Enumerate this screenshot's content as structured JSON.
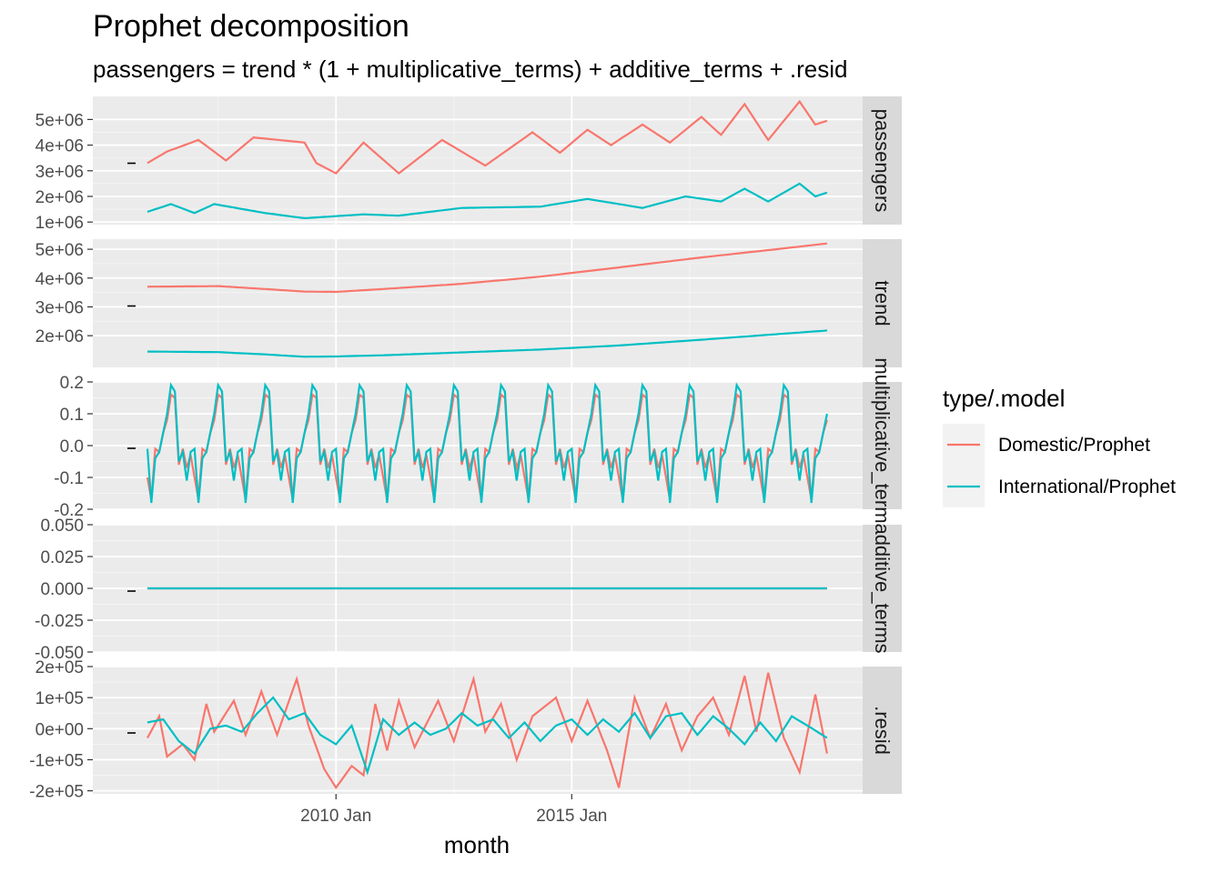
{
  "chart_data": {
    "type": "line",
    "title": "Prophet decomposition",
    "subtitle": "passengers = trend * (1 + multiplicative_terms) + additive_terms + .resid",
    "xlabel": "month",
    "x_ticks": [
      "2010 Jan",
      "2015 Jan"
    ],
    "legend": {
      "title": "type/.model",
      "placement": "right",
      "entries": [
        "Domestic/Prophet",
        "International/Prophet"
      ]
    },
    "colors": {
      "Domestic/Prophet": "#F8766D",
      "International/Prophet": "#00BFC4"
    },
    "grid": true,
    "x_range": [
      "2006 Jan",
      "2017 Dec"
    ],
    "panels": [
      {
        "strip": "passengers",
        "ylim": [
          900000,
          5900000
        ],
        "y_ticks": [
          "1e+06",
          "2e+06",
          "3e+06",
          "4e+06",
          "5e+06"
        ],
        "y_tick_values": [
          1000000,
          2000000,
          3000000,
          4000000,
          5000000
        ],
        "series": [
          {
            "name": "Domestic/Prophet",
            "anchors": [
              [
                0,
                3300000
              ],
              [
                5,
                3750000
              ],
              [
                13,
                4200000
              ],
              [
                20,
                3400000
              ],
              [
                27,
                4300000
              ],
              [
                40,
                4100000
              ],
              [
                43,
                3300000
              ],
              [
                48,
                2900000
              ],
              [
                55,
                4100000
              ],
              [
                64,
                2900000
              ],
              [
                75,
                4200000
              ],
              [
                86,
                3200000
              ],
              [
                98,
                4500000
              ],
              [
                105,
                3700000
              ],
              [
                112,
                4600000
              ],
              [
                118,
                4000000
              ],
              [
                126,
                4800000
              ],
              [
                133,
                4100000
              ],
              [
                141,
                5100000
              ],
              [
                146,
                4400000
              ],
              [
                152,
                5600000
              ],
              [
                158,
                4200000
              ],
              [
                166,
                5700000
              ],
              [
                170,
                4800000
              ],
              [
                173,
                4950000
              ]
            ]
          },
          {
            "name": "International/Prophet",
            "anchors": [
              [
                0,
                1400000
              ],
              [
                6,
                1700000
              ],
              [
                12,
                1350000
              ],
              [
                17,
                1700000
              ],
              [
                30,
                1350000
              ],
              [
                40,
                1150000
              ],
              [
                55,
                1300000
              ],
              [
                64,
                1250000
              ],
              [
                80,
                1550000
              ],
              [
                100,
                1600000
              ],
              [
                112,
                1900000
              ],
              [
                126,
                1550000
              ],
              [
                137,
                2000000
              ],
              [
                146,
                1800000
              ],
              [
                152,
                2300000
              ],
              [
                158,
                1800000
              ],
              [
                166,
                2500000
              ],
              [
                170,
                2000000
              ],
              [
                173,
                2150000
              ]
            ]
          }
        ]
      },
      {
        "strip": "trend",
        "ylim": [
          900000,
          5350000
        ],
        "y_ticks": [
          "2e+06",
          "3e+06",
          "4e+06",
          "5e+06"
        ],
        "y_tick_values": [
          2000000,
          3000000,
          4000000,
          5000000
        ],
        "series": [
          {
            "name": "Domestic/Prophet",
            "anchors": [
              [
                0,
                3700000
              ],
              [
                18,
                3720000
              ],
              [
                30,
                3620000
              ],
              [
                40,
                3530000
              ],
              [
                48,
                3520000
              ],
              [
                60,
                3620000
              ],
              [
                80,
                3800000
              ],
              [
                100,
                4050000
              ],
              [
                120,
                4370000
              ],
              [
                140,
                4700000
              ],
              [
                160,
                5000000
              ],
              [
                173,
                5200000
              ]
            ]
          },
          {
            "name": "International/Prophet",
            "anchors": [
              [
                0,
                1450000
              ],
              [
                18,
                1430000
              ],
              [
                30,
                1350000
              ],
              [
                40,
                1270000
              ],
              [
                48,
                1280000
              ],
              [
                60,
                1320000
              ],
              [
                80,
                1420000
              ],
              [
                100,
                1520000
              ],
              [
                120,
                1660000
              ],
              [
                140,
                1850000
              ],
              [
                160,
                2050000
              ],
              [
                173,
                2180000
              ]
            ]
          }
        ]
      },
      {
        "strip": "multiplicative_terms",
        "ylim": [
          -0.2,
          0.2
        ],
        "y_ticks": [
          "-0.2",
          "-0.1",
          "0.0",
          "0.1",
          "0.2"
        ],
        "y_tick_values": [
          -0.2,
          -0.1,
          0.0,
          0.1,
          0.2
        ],
        "series": [
          {
            "name": "Domestic/Prophet",
            "seasonal": [
              -0.1,
              -0.17,
              -0.01,
              -0.02,
              0.04,
              0.08,
              0.16,
              0.15,
              -0.06,
              -0.01,
              -0.07,
              -0.03
            ]
          },
          {
            "name": "International/Prophet",
            "seasonal": [
              -0.01,
              -0.18,
              -0.04,
              -0.02,
              0.04,
              0.1,
              0.19,
              0.17,
              -0.05,
              -0.02,
              -0.11,
              -0.02
            ]
          }
        ]
      },
      {
        "strip": "additive_terms",
        "ylim": [
          -0.05,
          0.05
        ],
        "y_ticks": [
          "-0.050",
          "-0.025",
          "0.000",
          "0.025",
          "0.050"
        ],
        "y_tick_values": [
          -0.05,
          -0.025,
          0.0,
          0.025,
          0.05
        ],
        "series": [
          {
            "name": "Domestic/Prophet",
            "anchors": [
              [
                0,
                0
              ],
              [
                173,
                0
              ]
            ]
          },
          {
            "name": "International/Prophet",
            "anchors": [
              [
                0,
                0
              ],
              [
                173,
                0
              ]
            ]
          }
        ]
      },
      {
        "strip": ".resid",
        "ylim": [
          -210000,
          200000
        ],
        "y_ticks": [
          "-2e+05",
          "-1e+05",
          "0e+00",
          "1e+05",
          "2e+05"
        ],
        "y_tick_values": [
          -200000,
          -100000,
          0,
          100000,
          200000
        ],
        "series": [
          {
            "name": "Domestic/Prophet",
            "anchors": [
              [
                0,
                -30000
              ],
              [
                3,
                40000
              ],
              [
                5,
                -90000
              ],
              [
                9,
                -50000
              ],
              [
                12,
                -100000
              ],
              [
                15,
                80000
              ],
              [
                17,
                -10000
              ],
              [
                22,
                90000
              ],
              [
                25,
                -20000
              ],
              [
                29,
                120000
              ],
              [
                33,
                -20000
              ],
              [
                38,
                160000
              ],
              [
                41,
                10000
              ],
              [
                45,
                -130000
              ],
              [
                48,
                -190000
              ],
              [
                52,
                -120000
              ],
              [
                55,
                -150000
              ],
              [
                58,
                80000
              ],
              [
                61,
                -70000
              ],
              [
                64,
                90000
              ],
              [
                68,
                -60000
              ],
              [
                74,
                90000
              ],
              [
                78,
                -40000
              ],
              [
                83,
                160000
              ],
              [
                86,
                -10000
              ],
              [
                90,
                80000
              ],
              [
                94,
                -100000
              ],
              [
                98,
                40000
              ],
              [
                104,
                100000
              ],
              [
                108,
                -40000
              ],
              [
                112,
                90000
              ],
              [
                117,
                -70000
              ],
              [
                120,
                -190000
              ],
              [
                124,
                100000
              ],
              [
                128,
                -30000
              ],
              [
                132,
                80000
              ],
              [
                136,
                -70000
              ],
              [
                140,
                40000
              ],
              [
                144,
                100000
              ],
              [
                148,
                -20000
              ],
              [
                152,
                170000
              ],
              [
                155,
                -10000
              ],
              [
                158,
                180000
              ],
              [
                162,
                -30000
              ],
              [
                166,
                -140000
              ],
              [
                170,
                110000
              ],
              [
                173,
                -80000
              ]
            ]
          },
          {
            "name": "International/Prophet",
            "anchors": [
              [
                0,
                20000
              ],
              [
                4,
                30000
              ],
              [
                8,
                -40000
              ],
              [
                12,
                -80000
              ],
              [
                16,
                0
              ],
              [
                20,
                10000
              ],
              [
                24,
                -10000
              ],
              [
                28,
                50000
              ],
              [
                32,
                100000
              ],
              [
                36,
                30000
              ],
              [
                40,
                50000
              ],
              [
                44,
                -20000
              ],
              [
                48,
                -50000
              ],
              [
                52,
                10000
              ],
              [
                56,
                -140000
              ],
              [
                60,
                30000
              ],
              [
                64,
                -20000
              ],
              [
                68,
                20000
              ],
              [
                72,
                -20000
              ],
              [
                76,
                0
              ],
              [
                80,
                50000
              ],
              [
                84,
                10000
              ],
              [
                88,
                30000
              ],
              [
                92,
                -30000
              ],
              [
                96,
                20000
              ],
              [
                100,
                -40000
              ],
              [
                104,
                10000
              ],
              [
                108,
                30000
              ],
              [
                112,
                -20000
              ],
              [
                116,
                30000
              ],
              [
                120,
                -10000
              ],
              [
                124,
                50000
              ],
              [
                128,
                -30000
              ],
              [
                132,
                40000
              ],
              [
                136,
                50000
              ],
              [
                140,
                -20000
              ],
              [
                144,
                40000
              ],
              [
                148,
                0
              ],
              [
                152,
                -50000
              ],
              [
                156,
                20000
              ],
              [
                160,
                -40000
              ],
              [
                164,
                40000
              ],
              [
                168,
                10000
              ],
              [
                173,
                -30000
              ]
            ]
          }
        ]
      }
    ]
  }
}
